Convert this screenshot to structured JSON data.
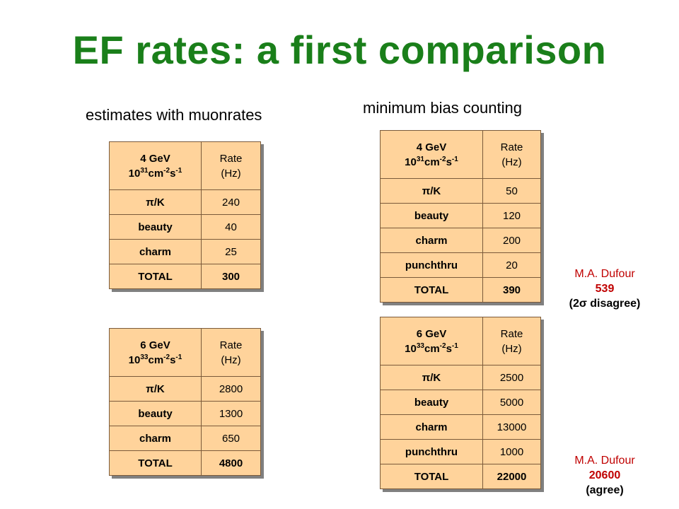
{
  "title": "EF rates: a first comparison",
  "subtitle_left": "estimates with muonrates",
  "subtitle_right": "minimum bias counting",
  "tables": [
    {
      "energy": "4 GeV",
      "lum_base": "10",
      "lum_exp": "31",
      "lum_units": "cm",
      "units_exp1": "-2",
      "units_s": "s",
      "units_exp2": "-1",
      "rate_label": "Rate",
      "rate_unit": "(Hz)",
      "rows": [
        {
          "label": "π/K",
          "value": "240"
        },
        {
          "label": "beauty",
          "value": "40"
        },
        {
          "label": "charm",
          "value": "25"
        },
        {
          "label": "TOTAL",
          "value": "300"
        }
      ]
    },
    {
      "energy": "6 GeV",
      "lum_base": "10",
      "lum_exp": "33",
      "lum_units": "cm",
      "units_exp1": "-2",
      "units_s": "s",
      "units_exp2": "-1",
      "rate_label": "Rate",
      "rate_unit": "(Hz)",
      "rows": [
        {
          "label": "π/K",
          "value": "2800"
        },
        {
          "label": "beauty",
          "value": "1300"
        },
        {
          "label": "charm",
          "value": "650"
        },
        {
          "label": "TOTAL",
          "value": "4800"
        }
      ]
    },
    {
      "energy": "4 GeV",
      "lum_base": "10",
      "lum_exp": "31",
      "lum_units": "cm",
      "units_exp1": "-2",
      "units_s": "s",
      "units_exp2": "-1",
      "rate_label": "Rate",
      "rate_unit": "(Hz)",
      "rows": [
        {
          "label": "π/K",
          "value": "50"
        },
        {
          "label": "beauty",
          "value": "120"
        },
        {
          "label": "charm",
          "value": "200"
        },
        {
          "label": "punchthru",
          "value": "20"
        },
        {
          "label": "TOTAL",
          "value": "390"
        }
      ]
    },
    {
      "energy": "6 GeV",
      "lum_base": "10",
      "lum_exp": "33",
      "lum_units": "cm",
      "units_exp1": "-2",
      "units_s": "s",
      "units_exp2": "-1",
      "rate_label": "Rate",
      "rate_unit": "(Hz)",
      "rows": [
        {
          "label": "π/K",
          "value": "2500"
        },
        {
          "label": "beauty",
          "value": "5000"
        },
        {
          "label": "charm",
          "value": "13000"
        },
        {
          "label": "punchthru",
          "value": "1000"
        },
        {
          "label": "TOTAL",
          "value": "22000"
        }
      ]
    }
  ],
  "notes": [
    {
      "name": "M.A. Dufour",
      "value": "539",
      "comment": "(2σ disagree)"
    },
    {
      "name": "M.A. Dufour",
      "value": "20600",
      "comment": "(agree)"
    }
  ],
  "colors": {
    "title": "#1a7f1a",
    "table_fill": "#ffd39b",
    "note_accent": "#c00000"
  }
}
